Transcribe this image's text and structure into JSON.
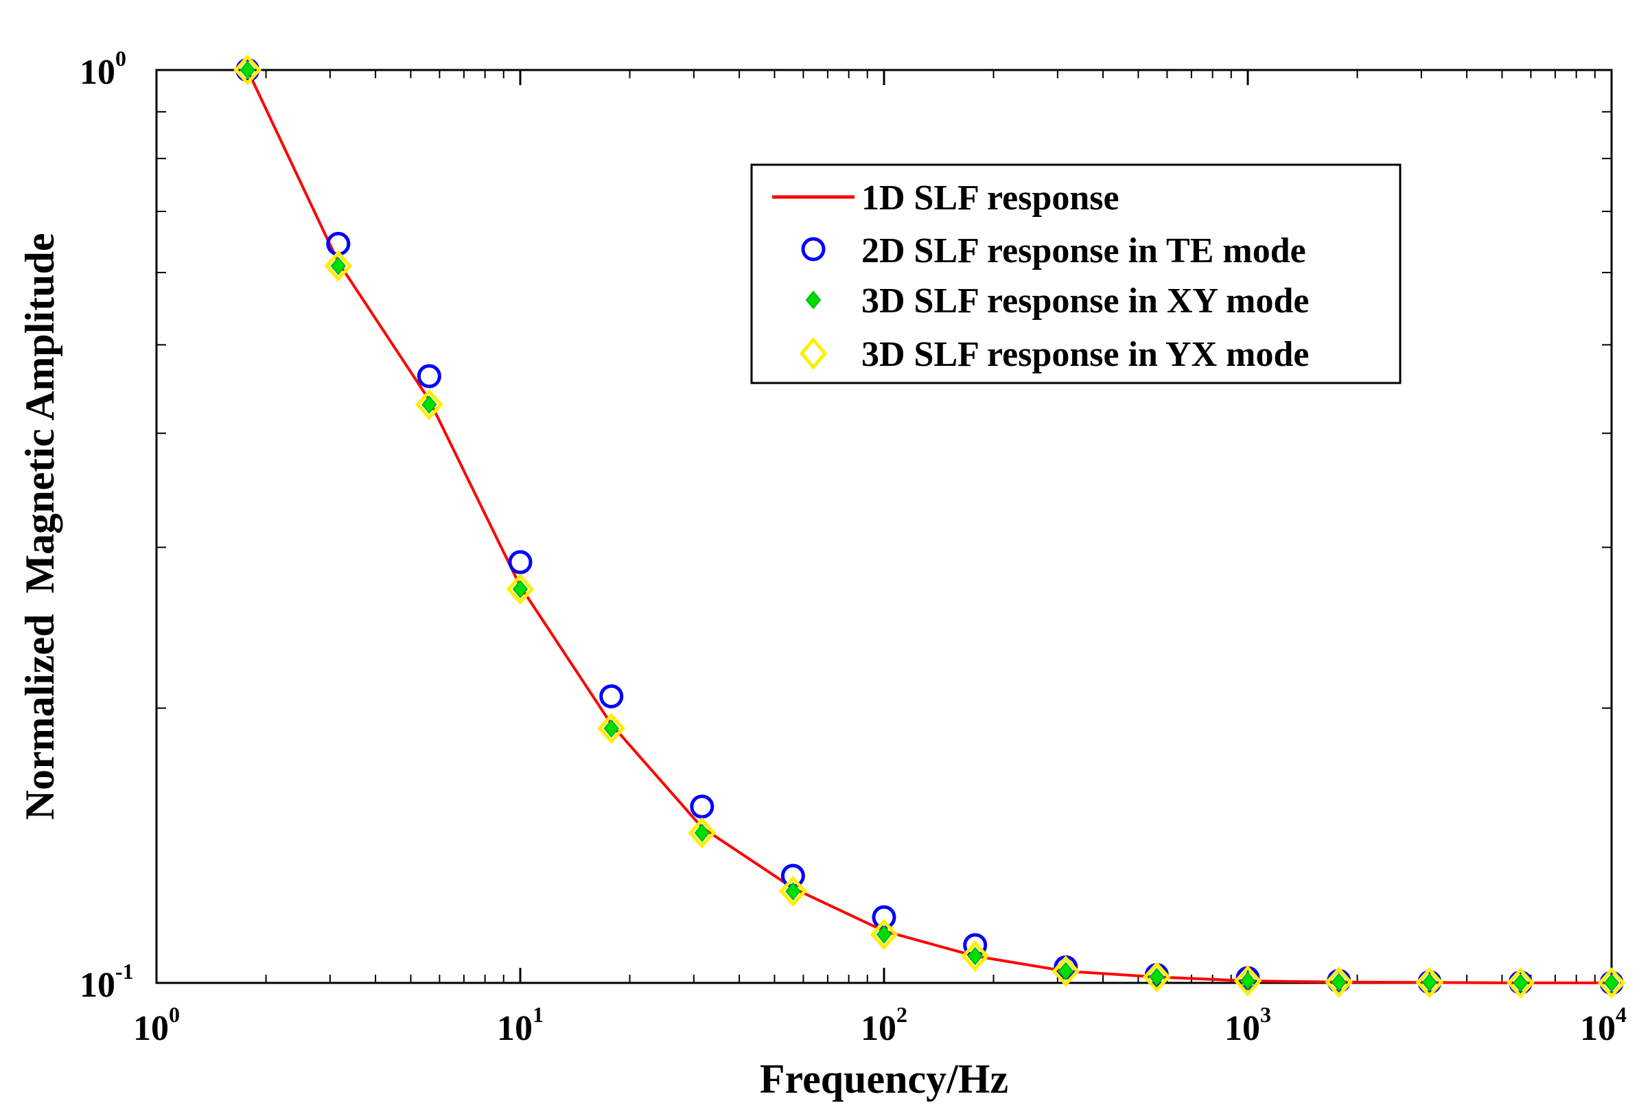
{
  "chart_data": {
    "type": "line",
    "title": "",
    "xlabel": "Frequency/Hz",
    "ylabel": "Normalized  Magnetic Amplitude",
    "xscale": "log",
    "yscale": "log",
    "xlim": [
      1,
      10000
    ],
    "ylim": [
      0.1,
      1
    ],
    "x_ticks": [
      {
        "base": "10",
        "exp": "0"
      },
      {
        "base": "10",
        "exp": "1"
      },
      {
        "base": "10",
        "exp": "2"
      },
      {
        "base": "10",
        "exp": "3"
      },
      {
        "base": "10",
        "exp": "4"
      }
    ],
    "y_ticks": [
      {
        "base": "10",
        "exp": "-1"
      },
      {
        "base": "10",
        "exp": "0"
      }
    ],
    "grid": false,
    "legend_position": "top-right",
    "series": [
      {
        "name": "1D SLF response",
        "style": "line",
        "color": "#ff0000",
        "x": [
          1.78,
          3.16,
          5.62,
          10,
          17.8,
          31.6,
          56.2,
          100,
          178,
          316,
          562,
          1000,
          1780,
          3160,
          5620,
          10000
        ],
        "values": [
          1.0,
          0.616,
          0.435,
          0.272,
          0.192,
          0.148,
          0.127,
          0.114,
          0.107,
          0.103,
          0.1015,
          0.1005,
          0.1002,
          0.1001,
          0.1,
          0.1
        ]
      },
      {
        "name": "2D SLF response in TE mode",
        "style": "marker-circle",
        "color": "#0000ff",
        "x": [
          1.78,
          3.16,
          5.62,
          10,
          17.8,
          31.6,
          56.2,
          100,
          178,
          316,
          562,
          1000,
          1780,
          3160,
          5620,
          10000
        ],
        "values": [
          1.0,
          0.645,
          0.462,
          0.289,
          0.206,
          0.156,
          0.131,
          0.118,
          0.11,
          0.104,
          0.102,
          0.1012,
          0.1005,
          0.1002,
          0.1001,
          0.1
        ]
      },
      {
        "name": "3D SLF response in XY mode",
        "style": "marker-dot",
        "color": "#00dd00",
        "x": [
          1.78,
          3.16,
          5.62,
          10,
          17.8,
          31.6,
          56.2,
          100,
          178,
          316,
          562,
          1000,
          1780,
          3160,
          5620,
          10000
        ],
        "values": [
          1.0,
          0.61,
          0.43,
          0.27,
          0.19,
          0.146,
          0.126,
          0.113,
          0.107,
          0.103,
          0.1015,
          0.1005,
          0.1002,
          0.1001,
          0.1,
          0.1
        ]
      },
      {
        "name": "3D SLF response in YX mode",
        "style": "marker-diamond",
        "color": "#ffee00",
        "x": [
          1.78,
          3.16,
          5.62,
          10,
          17.8,
          31.6,
          56.2,
          100,
          178,
          316,
          562,
          1000,
          1780,
          3160,
          5620,
          10000
        ],
        "values": [
          1.0,
          0.61,
          0.43,
          0.27,
          0.19,
          0.146,
          0.126,
          0.113,
          0.107,
          0.103,
          0.1015,
          0.1005,
          0.1002,
          0.1001,
          0.1,
          0.1
        ]
      }
    ]
  }
}
